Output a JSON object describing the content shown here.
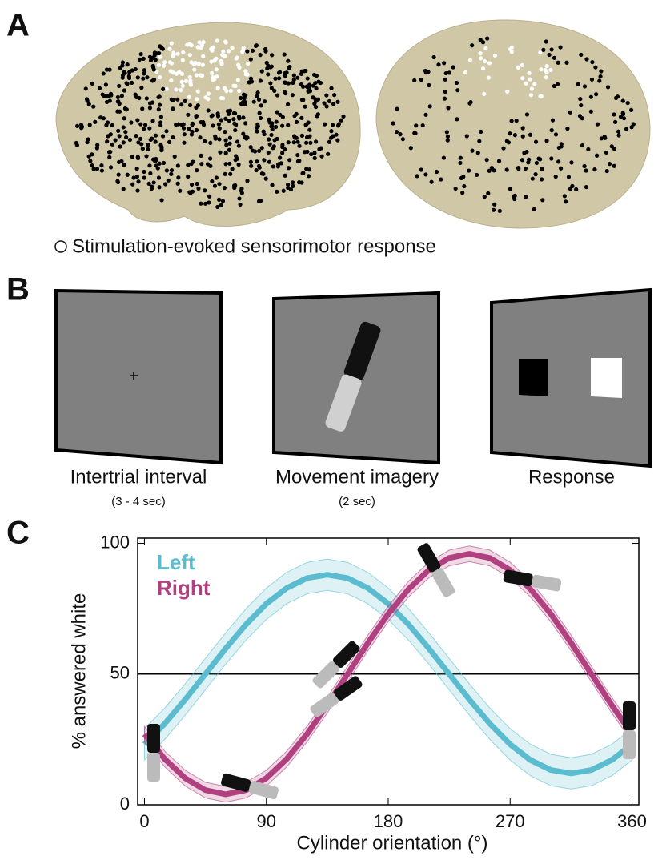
{
  "panel_labels": [
    "A",
    "B",
    "C"
  ],
  "panel_a": {
    "legend": "Stimulation-evoked sensorimotor response"
  },
  "panel_b": {
    "screens": [
      {
        "label": "Intertrial interval",
        "duration": "(3 - 4 sec)"
      },
      {
        "label": "Movement imagery",
        "duration": "(2 sec)"
      },
      {
        "label": "Response"
      }
    ]
  },
  "chart_data": {
    "type": "line",
    "xlabel": "Cylinder orientation (°)",
    "ylabel": "% answered white",
    "x": [
      0,
      15,
      30,
      45,
      60,
      75,
      90,
      105,
      120,
      135,
      150,
      165,
      180,
      195,
      210,
      225,
      240,
      255,
      270,
      285,
      300,
      315,
      330,
      345,
      360
    ],
    "series": [
      {
        "name": "Left",
        "color": "#5bbccf",
        "ci": 6,
        "values": [
          23.1,
          31,
          40.2,
          50,
          59.8,
          69,
          76.9,
          82.9,
          86.7,
          88,
          86.7,
          82.9,
          76.9,
          69,
          59.8,
          50,
          40.2,
          31,
          23.1,
          17.1,
          13.3,
          12,
          13.3,
          17.1,
          23.1
        ]
      },
      {
        "name": "Right",
        "color": "#b0407f",
        "ci": 3,
        "values": [
          27,
          17.5,
          10.2,
          5.6,
          4,
          5.6,
          10.2,
          17.5,
          27,
          38.1,
          50,
          61.9,
          73,
          82.5,
          89.8,
          94.4,
          96,
          94.4,
          89.8,
          82.5,
          73,
          61.9,
          50,
          38.1,
          27
        ]
      }
    ],
    "xlim": [
      -5,
      365
    ],
    "ylim": [
      0,
      102
    ],
    "xticks": [
      0,
      90,
      180,
      270,
      360
    ],
    "yticks": [
      0,
      50,
      100
    ],
    "hline": 50,
    "legend": "upper left"
  }
}
